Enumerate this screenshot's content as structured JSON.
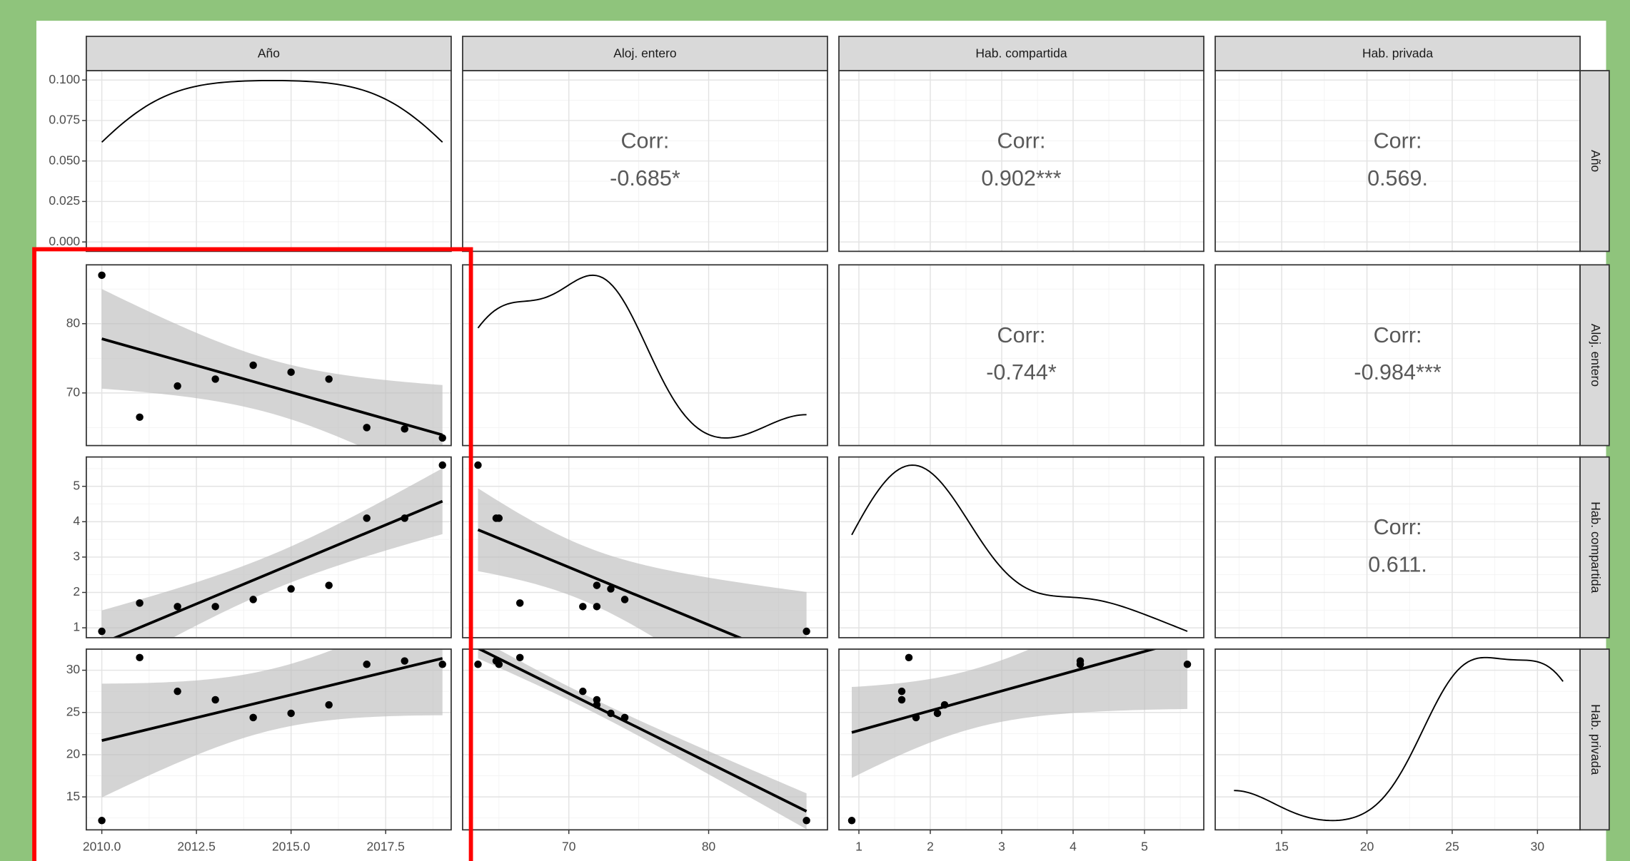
{
  "chart_data": {
    "type": "scatter_matrix",
    "corr_prefix": "Corr:",
    "density_ylim": [
      -0.0058,
      0.1058
    ],
    "density_yticks": [
      {
        "value": 0,
        "label": "0.000"
      },
      0.025,
      {
        "value": 0.05,
        "label": "0.050"
      },
      0.075,
      {
        "value": 0.1,
        "label": "0.100"
      }
    ],
    "grid": true,
    "point_color": "#000000",
    "line_color": "#000000",
    "band_color": "#bdbdbd",
    "variables": [
      {
        "name": "Año",
        "values": [
          2010,
          2011,
          2012,
          2013,
          2014,
          2015,
          2016,
          2017,
          2018,
          2019
        ],
        "lim": [
          2009.59,
          2019.23
        ],
        "ticks": [
          {
            "value": 2010,
            "label": "2010.0"
          },
          2012.5,
          {
            "value": 2015,
            "label": "2015.0"
          },
          2017.5
        ],
        "corr": [
          -0.685,
          0.902,
          0.569
        ],
        "corr_labels": [
          "-0.685*",
          "0.902***",
          "0.569."
        ]
      },
      {
        "name": "Aloj. entero",
        "values": [
          87,
          66.5,
          71,
          72,
          74,
          73,
          72,
          65,
          64.8,
          63.5
        ],
        "lim": [
          62.4,
          88.5
        ],
        "ticks": [
          70,
          80
        ],
        "corr": [
          -0.744,
          -0.984
        ],
        "corr_labels": [
          "-0.744*",
          "-0.984***"
        ]
      },
      {
        "name": "Hab. compartida",
        "values": [
          0.9,
          1.7,
          1.6,
          1.6,
          1.8,
          2.1,
          2.2,
          4.1,
          4.1,
          5.6
        ],
        "lim": [
          0.72,
          5.83
        ],
        "ticks": [
          1,
          2,
          3,
          4,
          5
        ],
        "corr": [
          0.611
        ],
        "corr_labels": [
          "0.611."
        ]
      },
      {
        "name": "Hab. privada",
        "values": [
          12.2,
          31.5,
          27.5,
          26.5,
          24.4,
          24.9,
          25.9,
          30.7,
          31.1,
          30.7
        ],
        "lim": [
          11.1,
          32.5
        ],
        "ticks": [
          15,
          20,
          25,
          30
        ],
        "corr": [],
        "corr_labels": []
      }
    ]
  }
}
